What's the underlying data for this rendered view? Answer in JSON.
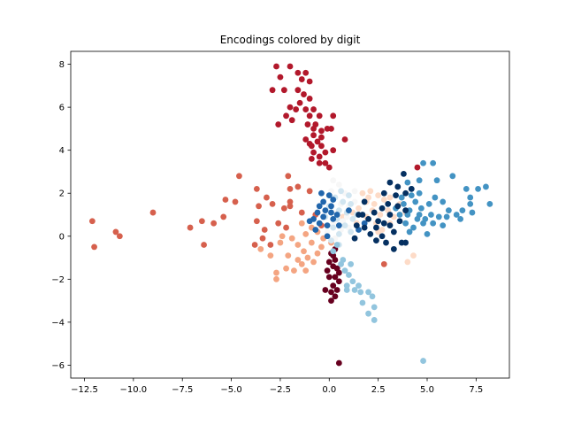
{
  "chart_data": {
    "type": "scatter",
    "title": "Encodings colored by digit",
    "xlabel": "",
    "ylabel": "",
    "xlim": [
      -13.2,
      9.2
    ],
    "ylim": [
      -6.6,
      8.6
    ],
    "xticks": [
      -12.5,
      -10.0,
      -7.5,
      -5.0,
      -2.5,
      0.0,
      2.5,
      5.0,
      7.5
    ],
    "xtick_labels": [
      "−12.5",
      "−10.0",
      "−7.5",
      "−5.0",
      "−2.5",
      "0.0",
      "2.5",
      "5.0",
      "7.5"
    ],
    "yticks": [
      -6,
      -4,
      -2,
      0,
      2,
      4,
      6,
      8
    ],
    "ytick_labels": [
      "−6",
      "−4",
      "−2",
      "0",
      "2",
      "4",
      "6",
      "8"
    ],
    "grid": false,
    "colormap": "RdBu",
    "series": [
      {
        "color": "#67001f",
        "points": [
          [
            0.0,
            -1.2
          ],
          [
            0.2,
            -1.4
          ],
          [
            -0.1,
            -1.6
          ],
          [
            0.4,
            -1.5
          ],
          [
            0.3,
            -1.9
          ],
          [
            0.5,
            -2.1
          ],
          [
            0.2,
            -2.3
          ],
          [
            0.4,
            -2.5
          ],
          [
            0.1,
            -2.6
          ],
          [
            -0.2,
            -2.5
          ],
          [
            0.3,
            -2.8
          ],
          [
            0.1,
            -3.0
          ],
          [
            0.0,
            -1.9
          ],
          [
            0.3,
            -1.1
          ],
          [
            0.2,
            -0.9
          ],
          [
            0.1,
            -0.8
          ],
          [
            0.5,
            -1.7
          ],
          [
            0.3,
            -0.6
          ],
          [
            0.5,
            -5.9
          ]
        ]
      },
      {
        "color": "#b2182b",
        "points": [
          [
            -2.7,
            7.9
          ],
          [
            -2.0,
            7.9
          ],
          [
            -1.6,
            7.6
          ],
          [
            -1.2,
            7.6
          ],
          [
            -2.5,
            7.4
          ],
          [
            -1.4,
            7.3
          ],
          [
            -1.0,
            7.2
          ],
          [
            -2.9,
            6.8
          ],
          [
            -2.3,
            6.8
          ],
          [
            -1.6,
            6.8
          ],
          [
            -1.3,
            6.6
          ],
          [
            -1.0,
            6.4
          ],
          [
            -1.5,
            6.2
          ],
          [
            -2.0,
            6.0
          ],
          [
            -1.7,
            5.9
          ],
          [
            -1.2,
            5.9
          ],
          [
            -0.8,
            5.9
          ],
          [
            -2.2,
            5.6
          ],
          [
            -1.9,
            5.4
          ],
          [
            -1.0,
            5.6
          ],
          [
            -0.5,
            5.6
          ],
          [
            0.2,
            5.6
          ],
          [
            -1.1,
            5.2
          ],
          [
            -0.7,
            5.2
          ],
          [
            -2.6,
            5.2
          ],
          [
            -0.8,
            5.0
          ],
          [
            -0.4,
            4.9
          ],
          [
            -0.1,
            5.0
          ],
          [
            0.1,
            5.0
          ],
          [
            -0.8,
            4.7
          ],
          [
            -0.4,
            4.6
          ],
          [
            -1.0,
            4.3
          ],
          [
            -0.6,
            4.4
          ],
          [
            -1.2,
            4.5
          ],
          [
            -0.4,
            4.2
          ],
          [
            -0.9,
            4.2
          ],
          [
            0.8,
            4.5
          ],
          [
            -0.2,
            3.9
          ],
          [
            0.2,
            4.0
          ],
          [
            -0.8,
            3.9
          ],
          [
            -0.5,
            3.7
          ],
          [
            -0.9,
            3.6
          ],
          [
            -0.2,
            3.4
          ],
          [
            0.0,
            3.2
          ],
          [
            -0.5,
            3.4
          ],
          [
            4.5,
            3.2
          ]
        ]
      },
      {
        "color": "#d6604d",
        "points": [
          [
            -4.6,
            2.8
          ],
          [
            -3.7,
            2.2
          ],
          [
            -5.3,
            1.7
          ],
          [
            -4.8,
            1.6
          ],
          [
            -3.2,
            1.8
          ],
          [
            -2.9,
            1.5
          ],
          [
            -2.3,
            1.3
          ],
          [
            -2.0,
            1.6
          ],
          [
            -3.6,
            1.4
          ],
          [
            -5.4,
            0.9
          ],
          [
            -3.7,
            0.7
          ],
          [
            -2.6,
            0.6
          ],
          [
            -3.3,
            0.3
          ],
          [
            -2.2,
            0.4
          ],
          [
            -3.4,
            -0.1
          ],
          [
            -3.8,
            -0.4
          ],
          [
            -3.0,
            -0.4
          ],
          [
            -6.5,
            0.7
          ],
          [
            -5.9,
            0.6
          ],
          [
            -7.1,
            0.4
          ],
          [
            -9.0,
            1.1
          ],
          [
            -12.1,
            0.7
          ],
          [
            -10.9,
            0.2
          ],
          [
            -10.7,
            0.0
          ],
          [
            -6.4,
            -0.4
          ],
          [
            -12.0,
            -0.5
          ],
          [
            -2.0,
            1.4
          ],
          [
            -2.1,
            2.8
          ],
          [
            -2.0,
            2.2
          ],
          [
            -1.6,
            2.3
          ],
          [
            -1.0,
            2.1
          ],
          [
            -1.4,
            1.1
          ],
          [
            -0.7,
            1.0
          ],
          [
            2.8,
            -1.3
          ],
          [
            -0.4,
            0.5
          ]
        ]
      },
      {
        "color": "#f4a582",
        "points": [
          [
            -2.4,
            0.0
          ],
          [
            -2.5,
            -0.3
          ],
          [
            -1.9,
            -0.1
          ],
          [
            -1.2,
            0.1
          ],
          [
            -1.6,
            -0.4
          ],
          [
            -0.9,
            -0.3
          ],
          [
            -1.3,
            -0.7
          ],
          [
            -2.1,
            -0.9
          ],
          [
            -1.6,
            -1.1
          ],
          [
            -1.1,
            -1.0
          ],
          [
            -0.6,
            -0.8
          ],
          [
            -0.4,
            -0.5
          ],
          [
            -0.8,
            -1.2
          ],
          [
            -1.4,
            -1.3
          ],
          [
            -2.2,
            -1.5
          ],
          [
            -1.8,
            -1.6
          ],
          [
            -1.2,
            -1.6
          ],
          [
            -2.7,
            -1.7
          ],
          [
            -2.7,
            -2.0
          ],
          [
            -3.5,
            -0.6
          ],
          [
            -3.0,
            -0.9
          ],
          [
            -0.3,
            -0.1
          ],
          [
            0.1,
            -0.3
          ],
          [
            -0.6,
            0.2
          ],
          [
            -0.9,
            0.4
          ],
          [
            -1.4,
            0.6
          ]
        ]
      },
      {
        "color": "#fddbc7",
        "points": [
          [
            1.7,
            2.0
          ],
          [
            2.1,
            2.1
          ],
          [
            2.5,
            1.9
          ],
          [
            1.9,
            1.6
          ],
          [
            2.3,
            1.5
          ],
          [
            2.8,
            1.7
          ],
          [
            1.5,
            1.3
          ],
          [
            2.2,
            1.2
          ],
          [
            3.0,
            1.2
          ],
          [
            2.6,
            1.0
          ],
          [
            1.9,
            0.9
          ],
          [
            2.4,
            0.6
          ],
          [
            3.1,
            0.6
          ],
          [
            2.7,
            0.3
          ],
          [
            1.4,
            0.6
          ],
          [
            3.6,
            1.5
          ],
          [
            3.9,
            1.1
          ],
          [
            3.3,
            0.9
          ],
          [
            1.2,
            1.1
          ],
          [
            2.0,
            1.8
          ],
          [
            4.0,
            -1.2
          ],
          [
            4.3,
            -0.9
          ],
          [
            3.1,
            1.8
          ],
          [
            2.5,
            0.2
          ],
          [
            0.7,
            0.9
          ]
        ]
      },
      {
        "color": "#f7f7f7",
        "points": [
          [
            0.1,
            2.1
          ],
          [
            0.5,
            2.4
          ],
          [
            0.8,
            2.0
          ],
          [
            1.3,
            2.1
          ],
          [
            0.2,
            1.7
          ],
          [
            0.6,
            1.5
          ],
          [
            1.0,
            1.4
          ],
          [
            0.4,
            1.1
          ],
          [
            0.9,
            0.9
          ],
          [
            0.2,
            0.6
          ],
          [
            0.6,
            0.3
          ],
          [
            1.0,
            0.4
          ],
          [
            -0.1,
            0.2
          ],
          [
            0.3,
            -0.1
          ],
          [
            0.7,
            0.7
          ],
          [
            1.3,
            1.6
          ],
          [
            0.2,
            2.6
          ]
        ]
      },
      {
        "color": "#d1e5f0",
        "points": [
          [
            0.3,
            1.8
          ],
          [
            0.7,
            1.6
          ],
          [
            1.0,
            1.9
          ],
          [
            0.5,
            1.2
          ],
          [
            0.9,
            1.1
          ],
          [
            1.2,
            0.8
          ],
          [
            0.4,
            0.8
          ],
          [
            0.8,
            0.5
          ],
          [
            1.1,
            0.2
          ],
          [
            0.5,
            0.1
          ],
          [
            0.2,
            0.4
          ],
          [
            -0.2,
            0.9
          ],
          [
            0.0,
            1.4
          ],
          [
            1.4,
            1.0
          ],
          [
            1.1,
            1.5
          ],
          [
            0.6,
            2.1
          ],
          [
            0.1,
            -0.2
          ],
          [
            0.5,
            -0.4
          ]
        ]
      },
      {
        "color": "#92c5de",
        "points": [
          [
            0.6,
            -1.3
          ],
          [
            0.8,
            -1.6
          ],
          [
            1.0,
            -1.8
          ],
          [
            1.2,
            -2.1
          ],
          [
            0.9,
            -2.3
          ],
          [
            1.3,
            -2.5
          ],
          [
            1.6,
            -2.6
          ],
          [
            2.0,
            -2.6
          ],
          [
            2.2,
            -2.8
          ],
          [
            1.5,
            -2.3
          ],
          [
            2.3,
            -3.3
          ],
          [
            2.0,
            -3.6
          ],
          [
            2.3,
            -3.9
          ],
          [
            1.7,
            -3.1
          ],
          [
            1.1,
            -1.3
          ],
          [
            0.7,
            -1.1
          ],
          [
            0.4,
            -0.4
          ],
          [
            0.2,
            -0.7
          ],
          [
            0.9,
            -2.5
          ],
          [
            4.8,
            -5.8
          ]
        ]
      },
      {
        "color": "#4393c3",
        "points": [
          [
            4.0,
            2.5
          ],
          [
            4.2,
            2.2
          ],
          [
            4.6,
            2.6
          ],
          [
            4.8,
            3.4
          ],
          [
            5.3,
            3.4
          ],
          [
            5.5,
            2.6
          ],
          [
            6.3,
            2.8
          ],
          [
            7.0,
            2.2
          ],
          [
            7.6,
            2.2
          ],
          [
            8.0,
            2.3
          ],
          [
            8.2,
            1.5
          ],
          [
            7.2,
            1.8
          ],
          [
            6.8,
            1.2
          ],
          [
            7.2,
            1.5
          ],
          [
            6.5,
            1.0
          ],
          [
            6.1,
            1.2
          ],
          [
            5.8,
            1.6
          ],
          [
            5.4,
            1.8
          ],
          [
            5.2,
            1.0
          ],
          [
            4.9,
            0.8
          ],
          [
            4.5,
            0.8
          ],
          [
            4.1,
            1.2
          ],
          [
            3.8,
            1.5
          ],
          [
            4.4,
            1.6
          ],
          [
            4.7,
            1.3
          ],
          [
            3.6,
            1.0
          ],
          [
            3.9,
            0.6
          ],
          [
            4.3,
            0.4
          ],
          [
            4.8,
            0.6
          ],
          [
            5.0,
            0.1
          ],
          [
            5.6,
            0.9
          ],
          [
            3.7,
            1.8
          ],
          [
            4.2,
            1.9
          ],
          [
            4.6,
            2.0
          ],
          [
            5.1,
            1.5
          ],
          [
            6.0,
            0.9
          ],
          [
            6.7,
            0.8
          ],
          [
            5.8,
            0.5
          ],
          [
            4.0,
            1.0
          ],
          [
            3.4,
            1.3
          ],
          [
            4.6,
            1.0
          ],
          [
            7.3,
            1.1
          ],
          [
            4.1,
            0.2
          ],
          [
            5.3,
            0.6
          ]
        ]
      },
      {
        "color": "#2166ac",
        "points": [
          [
            0.0,
            1.9
          ],
          [
            0.2,
            1.7
          ],
          [
            -0.3,
            1.6
          ],
          [
            0.1,
            1.4
          ],
          [
            -0.5,
            1.4
          ],
          [
            -0.2,
            1.2
          ],
          [
            0.1,
            1.1
          ],
          [
            -0.6,
            1.1
          ],
          [
            -0.3,
            0.9
          ],
          [
            0.2,
            0.8
          ],
          [
            -0.8,
            0.8
          ],
          [
            -0.5,
            0.6
          ],
          [
            -0.1,
            0.5
          ],
          [
            -1.0,
            0.7
          ],
          [
            -0.7,
            0.3
          ],
          [
            0.4,
            1.0
          ],
          [
            -0.4,
            2.0
          ],
          [
            1.5,
            0.3
          ],
          [
            1.8,
            0.6
          ],
          [
            -0.1,
            0.0
          ],
          [
            0.5,
            0.5
          ],
          [
            1.0,
            1.2
          ]
        ]
      },
      {
        "color": "#053061",
        "points": [
          [
            3.8,
            2.9
          ],
          [
            3.5,
            2.3
          ],
          [
            3.1,
            2.5
          ],
          [
            2.8,
            2.0
          ],
          [
            3.4,
            1.9
          ],
          [
            3.9,
            2.0
          ],
          [
            3.0,
            1.5
          ],
          [
            3.5,
            1.4
          ],
          [
            3.9,
            1.2
          ],
          [
            2.7,
            1.3
          ],
          [
            3.1,
            1.0
          ],
          [
            3.6,
            0.7
          ],
          [
            2.8,
            0.6
          ],
          [
            2.4,
            0.4
          ],
          [
            2.0,
            0.8
          ],
          [
            1.8,
            0.4
          ],
          [
            1.5,
            1.0
          ],
          [
            2.1,
            0.1
          ],
          [
            2.7,
            0.0
          ],
          [
            3.3,
            0.2
          ],
          [
            3.7,
            -0.3
          ],
          [
            3.3,
            -0.6
          ],
          [
            2.9,
            -0.3
          ],
          [
            2.4,
            -0.2
          ],
          [
            1.4,
            0.5
          ],
          [
            1.7,
            1.0
          ],
          [
            2.3,
            1.1
          ],
          [
            3.1,
            0.5
          ],
          [
            3.9,
            -0.3
          ],
          [
            2.5,
            0.7
          ],
          [
            1.3,
            -0.1
          ],
          [
            4.2,
            2.2
          ],
          [
            1.8,
            1.6
          ]
        ]
      }
    ]
  }
}
